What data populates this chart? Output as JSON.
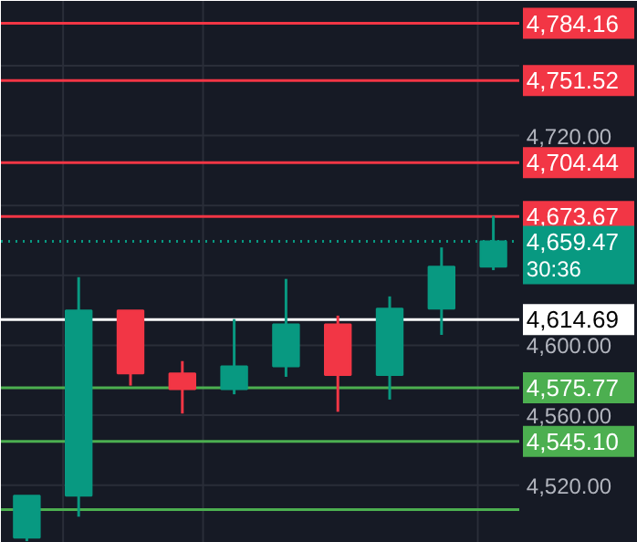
{
  "chart_data": {
    "type": "candlestick",
    "categories": [
      null,
      null,
      null,
      null,
      null,
      null,
      null,
      null,
      null,
      null
    ],
    "ohlc": [
      [
        4490,
        4514,
        4488,
        4514
      ],
      [
        4514,
        4639,
        4502,
        4620
      ],
      [
        4620,
        4620,
        4577,
        4584
      ],
      [
        4584,
        4591,
        4561,
        4575
      ],
      [
        4575,
        4615,
        4572,
        4588
      ],
      [
        4588,
        4638,
        4582,
        4612
      ],
      [
        4612,
        4617,
        4562,
        4583
      ],
      [
        4583,
        4628,
        4569,
        4621
      ],
      [
        4621,
        4656,
        4606,
        4645
      ],
      [
        4645,
        4674,
        4643,
        4659.47
      ]
    ],
    "colors": [
      "#089981",
      "#089981",
      "#f23645",
      "#f23645",
      "#089981",
      "#089981",
      "#f23645",
      "#089981",
      "#089981",
      "#089981"
    ],
    "ylim": [
      4487,
      4797
    ],
    "yticks": [
      {
        "value": 4520,
        "label": "4,520.00"
      },
      {
        "value": 4560,
        "label": "4,560.00"
      },
      {
        "value": 4600,
        "label": "4,600.00"
      },
      {
        "value": 4640,
        "label": null
      },
      {
        "value": 4680,
        "label": null
      },
      {
        "value": 4720,
        "label": "4,720.00"
      },
      {
        "value": 4760,
        "label": null
      }
    ],
    "tick_labels": "y",
    "grid": true,
    "ref_lines": [
      {
        "axis": "y",
        "value": 4784.16,
        "label": "4,784.16",
        "color": "#f23645"
      },
      {
        "axis": "y",
        "value": 4751.52,
        "label": "4,751.52",
        "color": "#f23645"
      },
      {
        "axis": "y",
        "value": 4704.44,
        "label": "4,704.44",
        "color": "#f23645"
      },
      {
        "axis": "y",
        "value": 4673.67,
        "label": "4,673.67",
        "color": "#f23645"
      },
      {
        "axis": "y",
        "value": 4659.47,
        "label": "4,659.47",
        "color": "#089981",
        "line_style": "dotted"
      },
      {
        "axis": "y",
        "value": 4614.69,
        "label": "4,614.69",
        "color": "#ffffff"
      },
      {
        "axis": "y",
        "value": 4575.77,
        "label": "4,575.77",
        "color": "#4caf50"
      },
      {
        "axis": "y",
        "value": 4545.1,
        "label": "4,545.10",
        "color": "#4caf50"
      },
      {
        "axis": "y",
        "value": 4506,
        "label": null,
        "color": "#4caf50"
      }
    ],
    "annotations": [
      "30:36"
    ]
  }
}
